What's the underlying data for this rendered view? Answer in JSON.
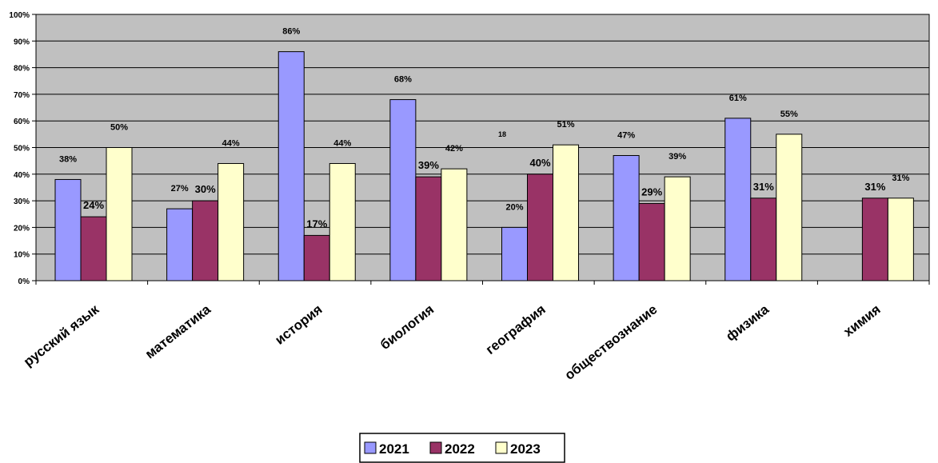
{
  "chart_data": {
    "type": "bar",
    "categories": [
      "русский язык",
      "математика",
      "история",
      "биология",
      "география",
      "обществознание",
      "физика",
      "химия"
    ],
    "series": [
      {
        "name": "2021",
        "color": "#9999ff",
        "values": [
          38,
          27,
          86,
          68,
          20,
          47,
          61,
          null
        ],
        "labels": [
          "38%",
          "27%",
          "86%",
          "68%",
          "20%",
          "47%",
          "61%",
          ""
        ]
      },
      {
        "name": "2022",
        "color": "#993366",
        "values": [
          24,
          30,
          17,
          39,
          40,
          29,
          31,
          31
        ],
        "labels": [
          "24%",
          "30%",
          "17%",
          "39%",
          "40%",
          "29%",
          "31%",
          "31%"
        ]
      },
      {
        "name": "2023",
        "color": "#ffffcc",
        "values": [
          50,
          44,
          44,
          42,
          51,
          39,
          55,
          31
        ],
        "labels": [
          "50%",
          "44%",
          "44%",
          "42%",
          "51%",
          "39%",
          "55%",
          "31%"
        ]
      }
    ],
    "annotations": [
      "18"
    ],
    "y_ticks": [
      "0%",
      "10%",
      "20%",
      "30%",
      "40%",
      "50%",
      "60%",
      "70%",
      "80%",
      "90%",
      "100%"
    ],
    "ylim": [
      0,
      100
    ],
    "grid": true,
    "plot_background": "#c0c0c0",
    "legend_position": "bottom-center"
  }
}
